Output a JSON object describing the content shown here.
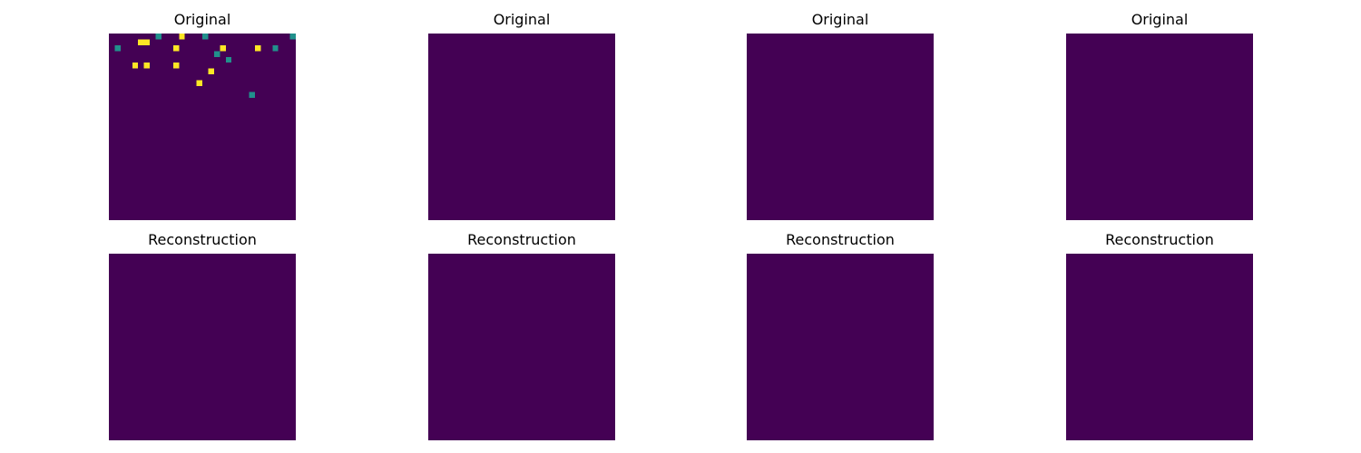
{
  "figure": {
    "colors": {
      "background": "#440154",
      "mid": "#21918c",
      "high": "#fde725"
    }
  },
  "chart_data": [
    {
      "type": "heatmap",
      "title": "Original",
      "grid": false,
      "rows": [
        "00000000100020001000000000000001",
        "00000220000000000000000000000000",
        "01000000000200000002000002001000",
        "00000000000000000010000000000000",
        "00000000000000000000100000000000",
        "00002020000200000000000000000000",
        "00000000000000000200000000000000",
        "00000000000000000000000000000000",
        "00000000000000020000000000000000",
        "00000000000000000000000000000000",
        "00000000000000000000000010000000",
        "00000000000000000000000000000000",
        "00000000000000000000000000000000",
        "00000000000000000000000000000000",
        "00000000000000000000000000000000",
        "00000000000000000000000000000000",
        "00000000000000000000000000000000",
        "00000000000000000000000000000000",
        "00000000000000000000000000000000",
        "00000000000000000000000000000000",
        "00000000000000000000000000000000",
        "00000000000000000000000000000000",
        "00000000000000000000000000000000",
        "00000000000000000000000000000000",
        "00000000000000000000000000000000",
        "00000000000000000000000000000000",
        "00000000000000000000000000000000",
        "00000000000000000000000000000000",
        "00000000000000000000000000000000",
        "00000000000000000000000000000000",
        "00000000000000000000000000000000",
        "00000000000000000000000000000000"
      ]
    },
    {
      "type": "heatmap",
      "title": "Original",
      "grid": false,
      "rows": [
        "00000000000000000000000000000000",
        "00000000000000000000000000000000",
        "00000000000000000000000000000000",
        "00000000000000000000000000000000",
        "00000000000000000000000000000000",
        "00000000000000000000000000000000",
        "00000000000000000000000000000000",
        "00000000000000000000000000000000",
        "00000000000000000000000000000000",
        "00000000000000000000000000000000",
        "00000000000000000000000000000000",
        "00000000000000000000000000000000",
        "00000000000000000000000000000000",
        "00000000000000000000000000000000",
        "00000000000000000000000000000000",
        "00000000000000000000000000000000",
        "00000000000000000000000000000000",
        "00000000000000000000000000000000",
        "00000000000000000000000000000000",
        "00000000000000000000000000000000",
        "00000000000000000000000000000000",
        "00000000000000000000000000000000",
        "00000000000000000000000000000000",
        "00000000000000000000000000000000",
        "00000000000000000000000000000000",
        "00000000000000000000000000000000",
        "00000000000000000000000000000000",
        "00000000000000000000000000000000",
        "00000000000000000000000000000000",
        "00000000000000000000000000000000",
        "00000000000000000000000000000000",
        "00000000000000000000000000000000"
      ]
    },
    {
      "type": "heatmap",
      "title": "Original",
      "grid": false,
      "rows": [
        "00000000000000000000000000000000",
        "00000000000000000000000000000000",
        "00000000000000000000000000000000",
        "00000000000000000000000000000000",
        "00000000000000000000000000000000",
        "00000000000000000000000000000000",
        "00000000000000000000000000000000",
        "00000000000000000000000000000000",
        "00000000000000000000000000000000",
        "00000000000000000000000000000000",
        "00000000000000000000000000000000",
        "00000000000000000000000000000000",
        "00000000000000000000000000000000",
        "00000000000000000000000000000000",
        "00000000000000000000000000000000",
        "00000000000000000000000000000000",
        "00000000000000000000000000000000",
        "00000000000000000000000000000000",
        "00000000000000000000000000000000",
        "00000000000000000000000000000000",
        "00000000000000000000000000000000",
        "00000000000000000000000000000000",
        "00000000000000000000000000000000",
        "00000000000000000000000000000000",
        "00000000000000000000000000000000",
        "00000000000000000000000000000000",
        "00000000000000000000000000000000",
        "00000000000000000000000000000000",
        "00000000000000000000000000000000",
        "00000000000000000000000000000000",
        "00000000000000000000000000000000",
        "00000000000000000000000000000000"
      ]
    },
    {
      "type": "heatmap",
      "title": "Original",
      "grid": false,
      "rows": [
        "00000000000000000000000000000000",
        "00000000000000000000000000000000",
        "00000000000000000000000000000000",
        "00000000000000000000000000000000",
        "00000000000000000000000000000000",
        "00000000000000000000000000000000",
        "00000000000000000000000000000000",
        "00000000000000000000000000000000",
        "00000000000000000000000000000000",
        "00000000000000000000000000000000",
        "00000000000000000000000000000000",
        "00000000000000000000000000000000",
        "00000000000000000000000000000000",
        "00000000000000000000000000000000",
        "00000000000000000000000000000000",
        "00000000000000000000000000000000",
        "00000000000000000000000000000000",
        "00000000000000000000000000000000",
        "00000000000000000000000000000000",
        "00000000000000000000000000000000",
        "00000000000000000000000000000000",
        "00000000000000000000000000000000",
        "00000000000000000000000000000000",
        "00000000000000000000000000000000",
        "00000000000000000000000000000000",
        "00000000000000000000000000000000",
        "00000000000000000000000000000000",
        "00000000000000000000000000000000",
        "00000000000000000000000000000000",
        "00000000000000000000000000000000",
        "00000000000000000000000000000000",
        "00000000000000000000000000000000"
      ]
    },
    {
      "type": "heatmap",
      "title": "Reconstruction",
      "grid": false,
      "rows": [
        "00000000000000000000000000000000",
        "00000000000000000000000000000000",
        "00000000000000000000000000000000",
        "00000000000000000000000000000000",
        "00000000000000000000000000000000",
        "00000000000000000000000000000000",
        "00000000000000000000000000000000",
        "00000000000000000000000000000000",
        "00000000000000000000000000000000",
        "00000000000000000000000000000000",
        "00000000000000000000000000000000",
        "00000000000000000000000000000000",
        "00000000000000000000000000000000",
        "00000000000000000000000000000000",
        "00000000000000000000000000000000",
        "00000000000000000000000000000000",
        "00000000000000000000000000000000",
        "00000000000000000000000000000000",
        "00000000000000000000000000000000",
        "00000000000000000000000000000000",
        "00000000000000000000000000000000",
        "00000000000000000000000000000000",
        "00000000000000000000000000000000",
        "00000000000000000000000000000000",
        "00000000000000000000000000000000",
        "00000000000000000000000000000000",
        "00000000000000000000000000000000",
        "00000000000000000000000000000000",
        "00000000000000000000000000000000",
        "00000000000000000000000000000000",
        "00000000000000000000000000000000",
        "00000000000000000000000000000000"
      ]
    },
    {
      "type": "heatmap",
      "title": "Reconstruction",
      "grid": false,
      "rows": [
        "00000000000000000000000000000000",
        "00000000000000000000000000000000",
        "00000000000000000000000000000000",
        "00000000000000000000000000000000",
        "00000000000000000000000000000000",
        "00000000000000000000000000000000",
        "00000000000000000000000000000000",
        "00000000000000000000000000000000",
        "00000000000000000000000000000000",
        "00000000000000000000000000000000",
        "00000000000000000000000000000000",
        "00000000000000000000000000000000",
        "00000000000000000000000000000000",
        "00000000000000000000000000000000",
        "00000000000000000000000000000000",
        "00000000000000000000000000000000",
        "00000000000000000000000000000000",
        "00000000000000000000000000000000",
        "00000000000000000000000000000000",
        "00000000000000000000000000000000",
        "00000000000000000000000000000000",
        "00000000000000000000000000000000",
        "00000000000000000000000000000000",
        "00000000000000000000000000000000",
        "00000000000000000000000000000000",
        "00000000000000000000000000000000",
        "00000000000000000000000000000000",
        "00000000000000000000000000000000",
        "00000000000000000000000000000000",
        "00000000000000000000000000000000",
        "00000000000000000000000000000000",
        "00000000000000000000000000000000"
      ]
    },
    {
      "type": "heatmap",
      "title": "Reconstruction",
      "grid": false,
      "rows": [
        "00000000000000000000000000000000",
        "00000000000000000000000000000000",
        "00000000000000000000000000000000",
        "00000000000000000000000000000000",
        "00000000000000000000000000000000",
        "00000000000000000000000000000000",
        "00000000000000000000000000000000",
        "00000000000000000000000000000000",
        "00000000000000000000000000000000",
        "00000000000000000000000000000000",
        "00000000000000000000000000000000",
        "00000000000000000000000000000000",
        "00000000000000000000000000000000",
        "00000000000000000000000000000000",
        "00000000000000000000000000000000",
        "00000000000000000000000000000000",
        "00000000000000000000000000000000",
        "00000000000000000000000000000000",
        "00000000000000000000000000000000",
        "00000000000000000000000000000000",
        "00000000000000000000000000000000",
        "00000000000000000000000000000000",
        "00000000000000000000000000000000",
        "00000000000000000000000000000000",
        "00000000000000000000000000000000",
        "00000000000000000000000000000000",
        "00000000000000000000000000000000",
        "00000000000000000000000000000000",
        "00000000000000000000000000000000",
        "00000000000000000000000000000000",
        "00000000000000000000000000000000",
        "00000000000000000000000000000000"
      ]
    },
    {
      "type": "heatmap",
      "title": "Reconstruction",
      "grid": false,
      "rows": [
        "00000000000000000000000000000000",
        "00000000000000000000000000000000",
        "00000000000000000000000000000000",
        "00000000000000000000000000000000",
        "00000000000000000000000000000000",
        "00000000000000000000000000000000",
        "00000000000000000000000000000000",
        "00000000000000000000000000000000",
        "00000000000000000000000000000000",
        "00000000000000000000000000000000",
        "00000000000000000000000000000000",
        "00000000000000000000000000000000",
        "00000000000000000000000000000000",
        "00000000000000000000000000000000",
        "00000000000000000000000000000000",
        "00000000000000000000000000000000",
        "00000000000000000000000000000000",
        "00000000000000000000000000000000",
        "00000000000000000000000000000000",
        "00000000000000000000000000000000",
        "00000000000000000000000000000000",
        "00000000000000000000000000000000",
        "00000000000000000000000000000000",
        "00000000000000000000000000000000",
        "00000000000000000000000000000000",
        "00000000000000000000000000000000",
        "00000000000000000000000000000000",
        "00000000000000000000000000000000",
        "00000000000000000000000000000000",
        "00000000000000000000000000000000",
        "00000000000000000000000000000000",
        "00000000000000000000000000000000"
      ]
    }
  ]
}
